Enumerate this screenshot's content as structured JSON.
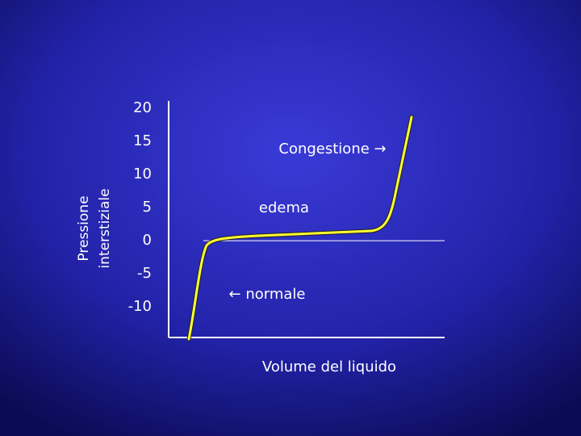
{
  "chart_data": {
    "type": "line",
    "ylabel": [
      "Pressione",
      "interstiziale"
    ],
    "xlabel": "Volume del liquido",
    "ylim": [
      -14.6,
      21.1
    ],
    "yticks": [
      20,
      15,
      10,
      5,
      0,
      -5,
      -10
    ],
    "annotations": [
      "Congestione →",
      "edema",
      "← normale"
    ],
    "color": "#ffff33"
  }
}
